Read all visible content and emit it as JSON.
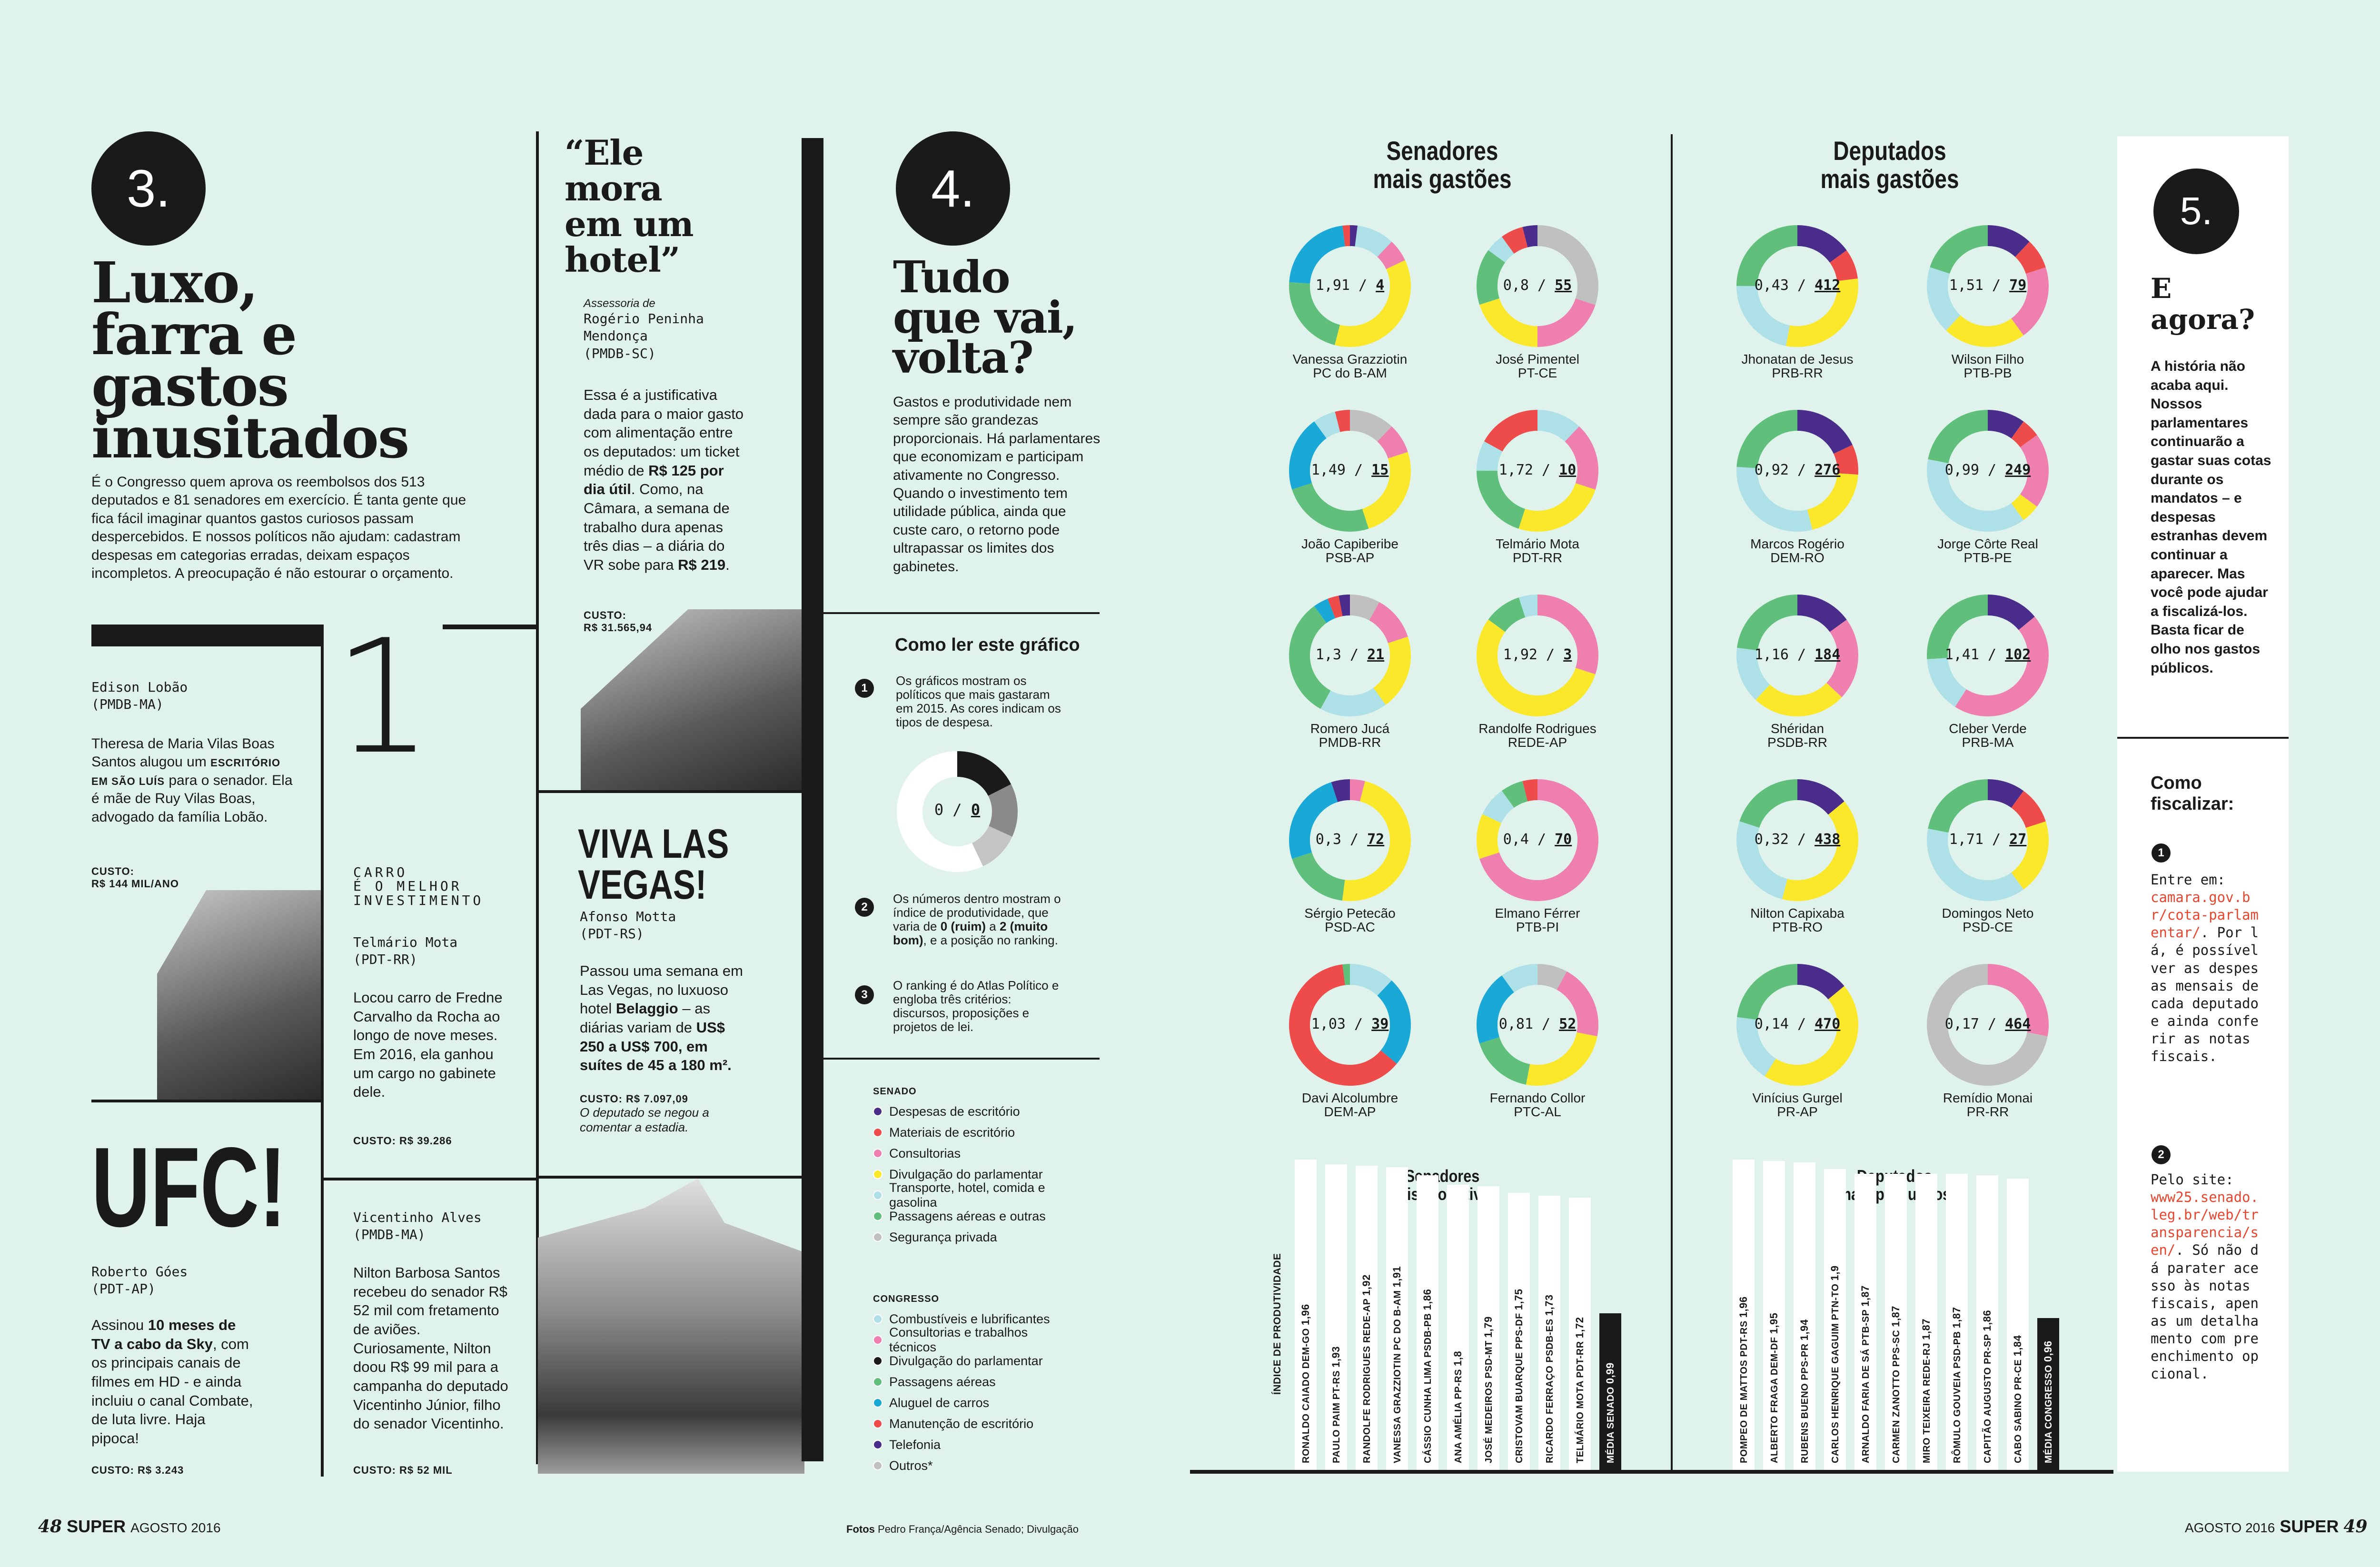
{
  "footer": {
    "left_num": "48",
    "left_brand": "SUPER",
    "left_date": "AGOSTO 2016",
    "credit_label": "Fotos",
    "credit": "Pedro França/Agência Senado; Divulgação",
    "right_date": "AGOSTO 2016",
    "right_brand": "SUPER",
    "right_num": "49"
  },
  "sec3": {
    "num": "3.",
    "title": [
      "Luxo,",
      "farra e",
      "gastos",
      "inusitados"
    ],
    "intro": "É o Congresso quem aprova os reembolsos dos 513 deputados e 81 senadores em exercício. É tanta gente que fica fácil imaginar quantos gastos curiosos passam despercebidos. E nossos políticos não ajudam: cadastram despesas em categorias erradas, deixam espaços incompletos. A preocupação é não estourar o orçamento."
  },
  "lobao": {
    "name": "Edison Lobão",
    "party": "(PMDB-MA)",
    "text_a": "Theresa de Maria Vilas Boas Santos alugou um ",
    "text_b": "ESCRITÓRIO EM SÃO LUÍS",
    "text_c": " para o senador. Ela é mãe de Ruy Vilas Boas, advogado da família Lobão.",
    "custo_l": "CUSTO:",
    "custo": "R$ 144 MIL/ANO"
  },
  "carro": {
    "big": "1",
    "sub": [
      "CARRO",
      "É O MELHOR",
      "INVESTIMENTO"
    ],
    "name": "Telmário Mota",
    "party": "(PDT-RR)",
    "text": "Locou carro de Fredne Carvalho da Rocha ao longo de nove meses. Em 2016, ela ganhou um cargo no gabinete dele.",
    "custo": "CUSTO: R$ 39.286"
  },
  "ufc": {
    "title": "UFC!",
    "name": "Roberto Góes",
    "party": "(PDT-AP)",
    "text_a": "Assinou ",
    "text_b": "10 meses de TV a cabo da Sky",
    "text_c": ", com os principais canais de filmes em HD - e ainda incluiu o canal Combate, de luta livre. Haja pipoca!",
    "custo": "CUSTO: R$ 3.243"
  },
  "vicentinho": {
    "name": "Vicentinho Alves",
    "party": "(PMDB-MA)",
    "text": "Nilton Barbosa Santos recebeu do senador R$ 52 mil com fretamento de aviões. Curiosamente, Nilton doou R$ 99 mil para a campanha do deputado Vicentinho Júnior, filho do senador Vicentinho.",
    "custo": "CUSTO: R$ 52 MIL"
  },
  "hotel": {
    "quote": [
      "“Ele",
      "mora",
      "em um",
      "hotel”"
    ],
    "attr": "Assessoria de",
    "name": "Rogério Peninha Mendonça",
    "party": "(PMDB-SC)",
    "text_a": "Essa é a justificativa dada para o maior gasto com alimentação entre os deputados: um ticket médio de ",
    "text_b": "R$ 125 por dia útil",
    "text_c": ". Como, na Câmara, a semana de trabalho dura apenas três dias – a diária do VR sobe para ",
    "text_d": "R$ 219",
    "text_e": ".",
    "custo_l": "CUSTO:",
    "custo": "R$ 31.565,94"
  },
  "vegas": {
    "title": [
      "VIVA LAS",
      "VEGAS!"
    ],
    "name": "Afonso Motta",
    "party": "(PDT-RS)",
    "text_a": "Passou uma semana em Las Vegas, no luxuoso hotel ",
    "text_b": "Belaggio",
    "text_c": " – as diárias variam de ",
    "text_d": "US$ 250 a US$ 700, em suítes de 45 a 180 m².",
    "custo": "CUSTO: R$ 7.097,09",
    "note": "O deputado se negou a comentar a estadia."
  },
  "sec4": {
    "num": "4.",
    "title": [
      "Tudo",
      "que vai,",
      "volta?"
    ],
    "text": "Gastos e produtividade nem sempre são grandezas proporcionais. Há parlamentares que economizam e participam ativamente no Congresso. Quando o investimento tem utilidade pública, ainda que custe caro, o retorno pode ultrapassar os limites dos gabinetes."
  },
  "howto": {
    "title": "Como ler este gráfico",
    "s1": "Os gráficos mostram os políticos que mais gastaram em 2015. As cores indicam os tipos de despesa.",
    "sample": "0 / ",
    "sample_u": "0",
    "s2_a": "Os números dentro mostram o índice de produtividade, que varia de ",
    "s2_b": "0 (ruim)",
    "s2_c": " a ",
    "s2_d": "2 (muito bom)",
    "s2_e": ", e a posição no ranking.",
    "s3": "O ranking é do Atlas Político e engloba três critérios: discursos, proposições e projetos de lei.",
    "n1": "1",
    "n2": "2",
    "n3": "3"
  },
  "legend": {
    "senado_title": "SENADO",
    "senado": [
      {
        "label": "Despesas de escritório",
        "color": "#4a2d8a"
      },
      {
        "label": "Materiais de escritório",
        "color": "#ee4b4b"
      },
      {
        "label": "Consultorias",
        "color": "#ef7fae"
      },
      {
        "label": "Divulgação do parlamentar",
        "color": "#fbe82b"
      },
      {
        "label": "Transporte, hotel, comida e gasolina",
        "color": "#aee0e8"
      },
      {
        "label": "Passagens aéreas e outras",
        "color": "#5fbf7b"
      },
      {
        "label": "Segurança privada",
        "color": "#c0c0c0"
      }
    ],
    "congresso_title": "CONGRESSO",
    "congresso": [
      {
        "label": "Combustíveis e lubrificantes",
        "color": "#aee0e8"
      },
      {
        "label": "Consultorias e trabalhos técnicos",
        "color": "#ef7fae"
      },
      {
        "label": "Divulgação do parlamentar",
        "color": "#1a1a1a"
      },
      {
        "label": "Passagens aéreas",
        "color": "#5fbf7b"
      },
      {
        "label": "Aluguel de carros",
        "color": "#1aa9d6"
      },
      {
        "label": "Manutenção de escritório",
        "color": "#ee4b4b"
      },
      {
        "label": "Telefonia",
        "color": "#4a2d8a"
      },
      {
        "label": "Outros*",
        "color": "#c0c0c0"
      }
    ]
  },
  "senadores_title": [
    "Senadores",
    "mais gastões"
  ],
  "deputados_title": [
    "Deputados",
    "mais gastões"
  ],
  "senadores": [
    {
      "name": "Vanessa Grazziotin",
      "party": "PC do B-AM",
      "score": "1,91",
      "rank": "4",
      "segs": [
        [
          "#4a2d8a",
          2
        ],
        [
          "#aee0e8",
          10
        ],
        [
          "#ef7fae",
          6
        ],
        [
          "#fbe82b",
          36
        ],
        [
          "#5fbf7b",
          22
        ],
        [
          "#1aa9d6",
          22
        ],
        [
          "#ee4b4b",
          2
        ]
      ]
    },
    {
      "name": "José Pimentel",
      "party": "PT-CE",
      "score": "0,8",
      "rank": "55",
      "segs": [
        [
          "#c0c0c0",
          30
        ],
        [
          "#ef7fae",
          20
        ],
        [
          "#fbe82b",
          20
        ],
        [
          "#5fbf7b",
          15
        ],
        [
          "#aee0e8",
          5
        ],
        [
          "#ee4b4b",
          6
        ],
        [
          "#4a2d8a",
          4
        ]
      ]
    },
    {
      "name": "João Capiberibe",
      "party": "PSB-AP",
      "score": "1,49",
      "rank": "15",
      "segs": [
        [
          "#c0c0c0",
          12
        ],
        [
          "#ef7fae",
          8
        ],
        [
          "#fbe82b",
          25
        ],
        [
          "#5fbf7b",
          25
        ],
        [
          "#1aa9d6",
          20
        ],
        [
          "#aee0e8",
          6
        ],
        [
          "#ee4b4b",
          4
        ]
      ]
    },
    {
      "name": "Telmário Mota",
      "party": "PDT-RR",
      "score": "1,72",
      "rank": "10",
      "segs": [
        [
          "#aee0e8",
          12
        ],
        [
          "#ef7fae",
          18
        ],
        [
          "#fbe82b",
          25
        ],
        [
          "#5fbf7b",
          20
        ],
        [
          "#aee0e8",
          8
        ],
        [
          "#ee4b4b",
          17
        ]
      ]
    },
    {
      "name": "Romero Jucá",
      "party": "PMDB-RR",
      "score": "1,3",
      "rank": "21",
      "segs": [
        [
          "#c0c0c0",
          8
        ],
        [
          "#ef7fae",
          12
        ],
        [
          "#fbe82b",
          20
        ],
        [
          "#aee0e8",
          18
        ],
        [
          "#5fbf7b",
          32
        ],
        [
          "#1aa9d6",
          4
        ],
        [
          "#ee4b4b",
          3
        ],
        [
          "#4a2d8a",
          3
        ]
      ]
    },
    {
      "name": "Randolfe Rodrigues",
      "party": "REDE-AP",
      "score": "1,92",
      "rank": "3",
      "segs": [
        [
          "#ef7fae",
          30
        ],
        [
          "#fbe82b",
          55
        ],
        [
          "#5fbf7b",
          10
        ],
        [
          "#aee0e8",
          5
        ]
      ]
    },
    {
      "name": "Sérgio Petecão",
      "party": "PSD-AC",
      "score": "0,3",
      "rank": "72",
      "segs": [
        [
          "#ef7fae",
          4
        ],
        [
          "#fbe82b",
          48
        ],
        [
          "#5fbf7b",
          18
        ],
        [
          "#1aa9d6",
          25
        ],
        [
          "#4a2d8a",
          5
        ]
      ]
    },
    {
      "name": "Elmano Férrer",
      "party": "PTB-PI",
      "score": "0,4",
      "rank": "70",
      "segs": [
        [
          "#ef7fae",
          70
        ],
        [
          "#fbe82b",
          12
        ],
        [
          "#aee0e8",
          8
        ],
        [
          "#5fbf7b",
          6
        ],
        [
          "#ee4b4b",
          4
        ]
      ]
    },
    {
      "name": "Davi Alcolumbre",
      "party": "DEM-AP",
      "score": "1,03",
      "rank": "39",
      "segs": [
        [
          "#aee0e8",
          12
        ],
        [
          "#1aa9d6",
          24
        ],
        [
          "#ee4b4b",
          62
        ],
        [
          "#5fbf7b",
          2
        ]
      ]
    },
    {
      "name": "Fernando Collor",
      "party": "PTC-AL",
      "score": "0,81",
      "rank": "52",
      "segs": [
        [
          "#c0c0c0",
          8
        ],
        [
          "#ef7fae",
          20
        ],
        [
          "#fbe82b",
          25
        ],
        [
          "#5fbf7b",
          17
        ],
        [
          "#1aa9d6",
          20
        ],
        [
          "#aee0e8",
          10
        ]
      ]
    }
  ],
  "deputados": [
    {
      "name": "Jhonatan de Jesus",
      "party": "PRB-RR",
      "score": "0,43",
      "rank": "412",
      "segs": [
        [
          "#4a2d8a",
          15
        ],
        [
          "#ee4b4b",
          8
        ],
        [
          "#fbe82b",
          30
        ],
        [
          "#aee0e8",
          22
        ],
        [
          "#5fbf7b",
          25
        ]
      ]
    },
    {
      "name": "Wilson Filho",
      "party": "PTB-PB",
      "score": "1,51",
      "rank": "79",
      "segs": [
        [
          "#4a2d8a",
          12
        ],
        [
          "#ee4b4b",
          8
        ],
        [
          "#ef7fae",
          20
        ],
        [
          "#fbe82b",
          22
        ],
        [
          "#aee0e8",
          18
        ],
        [
          "#5fbf7b",
          20
        ]
      ]
    },
    {
      "name": "Marcos Rogério",
      "party": "DEM-RO",
      "score": "0,92",
      "rank": "276",
      "segs": [
        [
          "#4a2d8a",
          18
        ],
        [
          "#ee4b4b",
          8
        ],
        [
          "#fbe82b",
          20
        ],
        [
          "#aee0e8",
          30
        ],
        [
          "#5fbf7b",
          24
        ]
      ]
    },
    {
      "name": "Jorge Côrte Real",
      "party": "PTB-PE",
      "score": "0,99",
      "rank": "249",
      "segs": [
        [
          "#4a2d8a",
          10
        ],
        [
          "#ee4b4b",
          5
        ],
        [
          "#ef7fae",
          20
        ],
        [
          "#fbe82b",
          5
        ],
        [
          "#aee0e8",
          38
        ],
        [
          "#5fbf7b",
          22
        ]
      ]
    },
    {
      "name": "Shéridan",
      "party": "PSDB-RR",
      "score": "1,16",
      "rank": "184",
      "segs": [
        [
          "#4a2d8a",
          15
        ],
        [
          "#ef7fae",
          22
        ],
        [
          "#fbe82b",
          25
        ],
        [
          "#aee0e8",
          15
        ],
        [
          "#5fbf7b",
          23
        ]
      ]
    },
    {
      "name": "Cleber Verde",
      "party": "PRB-MA",
      "score": "1,41",
      "rank": "102",
      "segs": [
        [
          "#4a2d8a",
          14
        ],
        [
          "#ef7fae",
          45
        ],
        [
          "#aee0e8",
          15
        ],
        [
          "#5fbf7b",
          26
        ]
      ]
    },
    {
      "name": "Nilton Capixaba",
      "party": "PTB-RO",
      "score": "0,32",
      "rank": "438",
      "segs": [
        [
          "#4a2d8a",
          14
        ],
        [
          "#fbe82b",
          40
        ],
        [
          "#aee0e8",
          26
        ],
        [
          "#5fbf7b",
          20
        ]
      ]
    },
    {
      "name": "Domingos Neto",
      "party": "PSD-CE",
      "score": "1,71",
      "rank": "27",
      "segs": [
        [
          "#4a2d8a",
          10
        ],
        [
          "#ee4b4b",
          10
        ],
        [
          "#fbe82b",
          20
        ],
        [
          "#aee0e8",
          38
        ],
        [
          "#5fbf7b",
          22
        ]
      ]
    },
    {
      "name": "Vinícius Gurgel",
      "party": "PR-AP",
      "score": "0,14",
      "rank": "470",
      "segs": [
        [
          "#4a2d8a",
          14
        ],
        [
          "#fbe82b",
          45
        ],
        [
          "#aee0e8",
          18
        ],
        [
          "#5fbf7b",
          23
        ]
      ]
    },
    {
      "name": "Remídio Monai",
      "party": "PR-RR",
      "score": "0,17",
      "rank": "464",
      "segs": [
        [
          "#ef7fae",
          28
        ],
        [
          "#c0c0c0",
          72
        ]
      ]
    }
  ],
  "produtivos_sen_title": [
    "Senadores",
    "mais produtivos"
  ],
  "produtivos_dep_title": [
    "Deputados",
    "mais produtivos"
  ],
  "axis_label": "ÍNDICE DE PRODUTIVIDADE",
  "chart_data": [
    {
      "type": "bar",
      "title": "Senadores mais produtivos",
      "ylabel": "ÍNDICE DE PRODUTIVIDADE",
      "categories": [
        "RONALDO CAIADO DEM-GO",
        "PAULO PAIM PT-RS",
        "RANDOLFE RODRIGUES REDE-AP",
        "VANESSA GRAZZIOTIN PC DO B-AM",
        "CÁSSIO CUNHA LIMA PSDB-PB",
        "ANA AMÉLIA PP-RS",
        "JOSÉ MEDEIROS PSD-MT",
        "CRISTOVAM BUARQUE PPS-DF",
        "RICARDO FERRAÇO PSDB-ES",
        "TELMÁRIO MOTA PDT-RR",
        "MÉDIA SENADO"
      ],
      "values": [
        1.96,
        1.93,
        1.92,
        1.91,
        1.86,
        1.8,
        1.79,
        1.75,
        1.73,
        1.72,
        0.99
      ],
      "labels": [
        "1,96",
        "1,93",
        "1,92",
        "1,91",
        "1,86",
        "1,8",
        "1,79",
        "1,75",
        "1,73",
        "1,72",
        "0,99"
      ]
    },
    {
      "type": "bar",
      "title": "Deputados mais produtivos",
      "ylabel": "ÍNDICE DE PRODUTIVIDADE",
      "categories": [
        "POMPEO DE MATTOS PDT-RS",
        "ALBERTO FRAGA DEM-DF",
        "RUBENS BUENO PPS-PR",
        "CARLOS HENRIQUE GAGUIM PTN-TO",
        "ARNALDO FARIA DE SÁ PTB-SP",
        "CARMEN ZANOTTO PPS-SC",
        "MIRO TEIXEIRA REDE-RJ",
        "RÔMULO GOUVEIA PSD-PB",
        "CAPITÃO AUGUSTO PR-SP",
        "CABO SABINO PR-CE",
        "MÉDIA CONGRESSO"
      ],
      "values": [
        1.96,
        1.95,
        1.94,
        1.9,
        1.87,
        1.87,
        1.87,
        1.87,
        1.86,
        1.84,
        0.96
      ],
      "labels": [
        "1,96",
        "1,95",
        "1,94",
        "1,9",
        "1,87",
        "1,87",
        "1,87",
        "1,87",
        "1,86",
        "1,84",
        "0,96"
      ]
    }
  ],
  "sec5": {
    "num": "5.",
    "title": [
      "E",
      "agora?"
    ],
    "text": "A história não acaba aqui. Nossos parlamentares continuarão a gastar suas cotas durante os mandatos – e despesas estranhas devem continuar a aparecer. Mas você pode ajudar a fiscalizá-los. Basta ficar de olho nos gastos públicos.",
    "como_title": [
      "Como",
      "fiscalizar:"
    ],
    "s1": "Entre em:",
    "s1_link": "camara.gov.br/cota-parlamentar/",
    "s1_rest": ". Por lá, é possível ver as despesas mensais de cada deputado e ainda conferir as notas fiscais.",
    "s2": "Pelo site:",
    "s2_link": "www25.senado.leg.br/web/transparencia/sen/",
    "s2_rest": ". Só não dá parater acesso às notas fiscais, apenas um detalhamento com preenchimento opcional.",
    "n1": "1",
    "n2": "2"
  }
}
